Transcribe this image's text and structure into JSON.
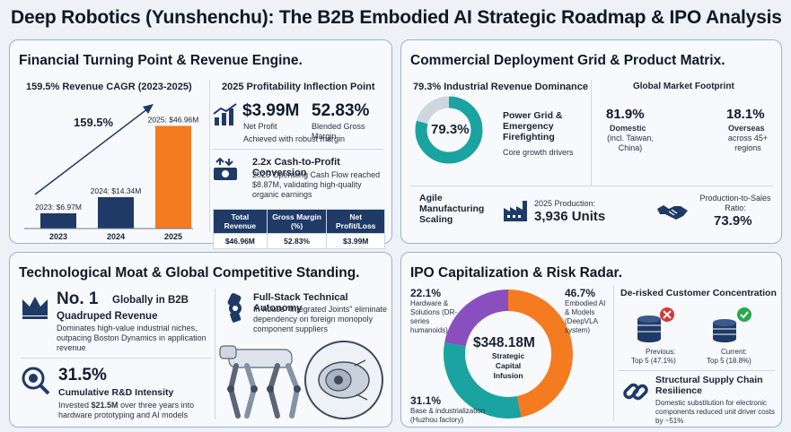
{
  "title": "Deep Robotics (Yunshenchu): The B2B Embodied AI Strategic Roadmap & IPO Analysis",
  "colors": {
    "navy": "#1f3a66",
    "orange": "#f47b20",
    "teal": "#1aa3a0",
    "purple": "#8a4fbf",
    "bg": "#eef1f6"
  },
  "financial": {
    "title": "Financial Turning Point & Revenue Engine.",
    "cagr_heading": "159.5% Revenue CAGR (2023-2025)",
    "growth_label": "159.5%",
    "bars": [
      {
        "year": "2023",
        "label": "2023: $6.97M",
        "value": 6.97
      },
      {
        "year": "2024",
        "label": "2024: $14.34M",
        "value": 14.34
      },
      {
        "year": "2025",
        "label": "2025: $46.96M",
        "value": 46.96
      }
    ],
    "profit_heading": "2025 Profitability Inflection Point",
    "net_profit_value": "$3.99M",
    "net_profit_label": "Net Profit",
    "margin_value": "52.83%",
    "margin_label": "Blended Gross Margin",
    "margin_note": "Achieved with robust margin",
    "cash_heading": "2.2x Cash-to-Profit Conversion",
    "cash_text": "2025 Operating Cash Flow reached $8.87M, validating high-quality organic earnings",
    "table": {
      "headers": [
        "Total Revenue",
        "Gross Margin (%)",
        "Net Profit/Loss"
      ],
      "row": [
        "$46.96M",
        "52.83%",
        "$3.99M"
      ]
    }
  },
  "deployment": {
    "title": "Commercial Deployment Grid & Product Matrix.",
    "dominance_heading": "79.3% Industrial Revenue Dominance",
    "donut_value": "79.3%",
    "donut_share": 79.3,
    "segment_title": "Power Grid & Emergency Firefighting",
    "segment_sub": "Core growth drivers",
    "footprint_heading": "Global Market Footprint",
    "domestic_value": "81.9%",
    "domestic_label": "Domestic",
    "domestic_sub": "(incl. Taiwan, China)",
    "overseas_value": "18.1%",
    "overseas_label": "Overseas",
    "overseas_sub": "across 45+ regions",
    "agile_label": "Agile Manufacturing Scaling",
    "production_label": "2025 Production:",
    "production_value": "3,936 Units",
    "ratio_label": "Production-to-Sales Ratio:",
    "ratio_value": "73.9%"
  },
  "tech": {
    "title": "Technological Moat & Global Competitive Standing.",
    "rank_value": "No. 1",
    "rank_text": "Globally in B2B Quadruped Revenue",
    "rank_sub": "Dominates high-value industrial niches, outpacing Boston Dynamics in application revenue",
    "rd_value": "31.5%",
    "rd_label": "Cumulative R&D Intensity",
    "rd_text_pre": "Invested ",
    "rd_text_bold": "$21.5M",
    "rd_text_post": " over three years into hardware prototyping and AI models",
    "stack_heading": "Full-Stack Technical Autonomy",
    "stack_text": "In-house \"Integrated Joints\" eliminate dependency on foreign monopoly component suppliers"
  },
  "ipo": {
    "title": "IPO Capitalization & Risk Radar.",
    "total_value": "$348.18M",
    "total_label": "Strategic Capital Infusion",
    "segments": [
      {
        "pct": "22.1%",
        "share": 22.1,
        "label": "Hardware & Solutions (DR-series humanoids)",
        "color": "#8a4fbf"
      },
      {
        "pct": "46.7%",
        "share": 46.7,
        "label": "Embodied AI & Models (DeepVLA system)",
        "color": "#f47b20"
      },
      {
        "pct": "31.1%",
        "share": 31.1,
        "label": "Base & industrialization (Huzhou factory)",
        "color": "#1aa3a0"
      }
    ],
    "concentration_heading": "De-risked Customer Concentration",
    "previous_label": "Previous:",
    "previous_value": "Top 5 (47.1%)",
    "current_label": "Current:",
    "current_value": "Top 5 (18.8%)",
    "supply_heading": "Structural Supply Chain Resilience",
    "supply_text": "Domestic substitution for electronic components reduced unit driver costs by ~51%"
  }
}
